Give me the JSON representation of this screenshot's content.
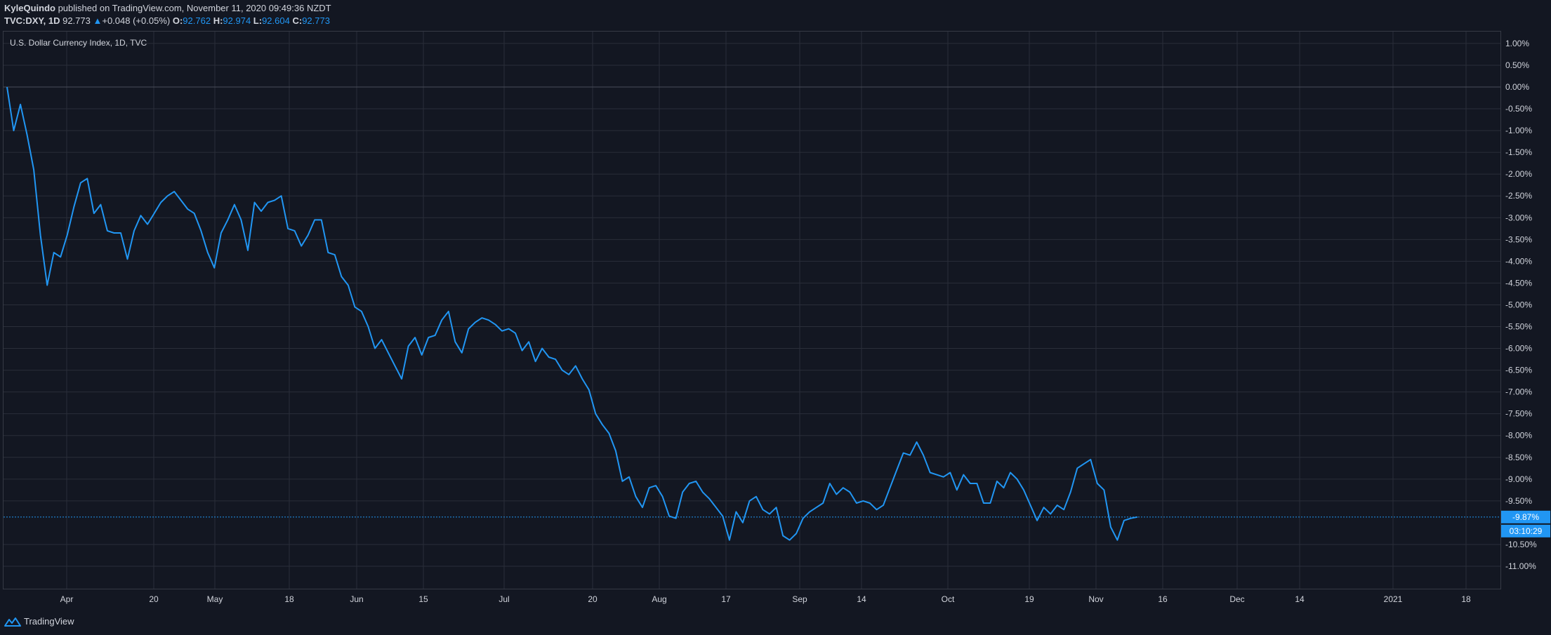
{
  "header": {
    "author": "KyleQuindo",
    "published_text": "published on TradingView.com, November 11, 2020 09:49:36 NZDT",
    "symbol": "TVC:DXY, 1D",
    "last": "92.773",
    "change_arrow": "▲",
    "change": "+0.048 (+0.05%)",
    "o_label": "O:",
    "o_value": "92.762",
    "h_label": "H:",
    "h_value": "92.974",
    "l_label": "L:",
    "l_value": "92.604",
    "c_label": "C:",
    "c_value": "92.773"
  },
  "footer": {
    "brand": "TradingView",
    "logo_icon": "tradingview-logo-icon"
  },
  "colors": {
    "background": "#131722",
    "grid": "#2a2e39",
    "line": "#2196f3",
    "text": "#d1d4dc"
  },
  "chart_data": {
    "type": "line",
    "title": "U.S. Dollar Currency Index, 1D, TVC",
    "y_unit": "%",
    "ylim": [
      -11.5,
      1.5
    ],
    "y_ticks": [
      "1.00%",
      "0.50%",
      "0.00%",
      "-0.50%",
      "-1.00%",
      "-1.50%",
      "-2.00%",
      "-2.50%",
      "-3.00%",
      "-3.50%",
      "-4.00%",
      "-4.50%",
      "-5.00%",
      "-5.50%",
      "-6.00%",
      "-6.50%",
      "-7.00%",
      "-7.50%",
      "-8.00%",
      "-8.50%",
      "-9.00%",
      "-9.50%",
      "-10.50%",
      "-11.00%"
    ],
    "y_tick_values": [
      1,
      0.5,
      0,
      -0.5,
      -1,
      -1.5,
      -2,
      -2.5,
      -3,
      -3.5,
      -4,
      -4.5,
      -5,
      -5.5,
      -6,
      -6.5,
      -7,
      -7.5,
      -8,
      -8.5,
      -9,
      -9.5,
      -10.5,
      -11
    ],
    "x_ticks": [
      "Apr",
      "20",
      "May",
      "18",
      "Jun",
      "15",
      "Jul",
      "20",
      "Aug",
      "17",
      "Sep",
      "14",
      "Oct",
      "19",
      "Nov",
      "16",
      "Dec",
      "14",
      "2021",
      "18"
    ],
    "x_tick_positions": [
      95,
      219,
      306,
      412,
      508,
      603,
      718,
      844,
      939,
      1034,
      1139,
      1227,
      1350,
      1466,
      1561,
      1656,
      1762,
      1851,
      1984,
      2088
    ],
    "grid": true,
    "last_value_label": "-9.87%",
    "last_value": -9.87,
    "countdown_label": "03:10:29",
    "series": [
      {
        "values": [
          0,
          -1,
          -0.4,
          -1.1,
          -1.9,
          -3.4,
          -4.55,
          -3.8,
          -3.9,
          -3.4,
          -2.75,
          -2.2,
          -2.1,
          -2.9,
          -2.7,
          -3.3,
          -3.35,
          -3.35,
          -3.95,
          -3.3,
          -2.95,
          -3.15,
          -2.9,
          -2.65,
          -2.5,
          -2.4,
          -2.6,
          -2.8,
          -2.9,
          -3.3,
          -3.8,
          -4.15,
          -3.35,
          -3.05,
          -2.7,
          -3.05,
          -3.75,
          -2.65,
          -2.85,
          -2.65,
          -2.6,
          -2.5,
          -3.25,
          -3.3,
          -3.65,
          -3.4,
          -3.05,
          -3.05,
          -3.8,
          -3.85,
          -4.35,
          -4.55,
          -5.05,
          -5.15,
          -5.5,
          -6.0,
          -5.8,
          -6.1,
          -6.4,
          -6.7,
          -5.95,
          -5.75,
          -6.15,
          -5.75,
          -5.7,
          -5.35,
          -5.15,
          -5.85,
          -6.1,
          -5.55,
          -5.4,
          -5.3,
          -5.35,
          -5.45,
          -5.6,
          -5.55,
          -5.65,
          -6.05,
          -5.85,
          -6.3,
          -6.0,
          -6.2,
          -6.25,
          -6.5,
          -6.6,
          -6.4,
          -6.7,
          -6.95,
          -7.5,
          -7.75,
          -7.95,
          -8.35,
          -9.05,
          -8.95,
          -9.4,
          -9.65,
          -9.2,
          -9.15,
          -9.4,
          -9.85,
          -9.9,
          -9.3,
          -9.1,
          -9.05,
          -9.3,
          -9.45,
          -9.65,
          -9.85,
          -10.4,
          -9.75,
          -10.0,
          -9.5,
          -9.4,
          -9.7,
          -9.8,
          -9.65,
          -10.3,
          -10.4,
          -10.25,
          -9.9,
          -9.75,
          -9.65,
          -9.55,
          -9.1,
          -9.35,
          -9.2,
          -9.3,
          -9.55,
          -9.5,
          -9.55,
          -9.7,
          -9.6,
          -9.2,
          -8.8,
          -8.4,
          -8.45,
          -8.15,
          -8.45,
          -8.85,
          -8.9,
          -8.95,
          -8.85,
          -9.25,
          -8.9,
          -9.1,
          -9.1,
          -9.55,
          -9.55,
          -9.05,
          -9.2,
          -8.85,
          -9.0,
          -9.25,
          -9.6,
          -9.95,
          -9.65,
          -9.8,
          -9.6,
          -9.7,
          -9.3,
          -8.75,
          -8.65,
          -8.55,
          -9.1,
          -9.25,
          -10.1,
          -10.4,
          -9.95,
          -9.9,
          -9.87
        ]
      }
    ]
  }
}
